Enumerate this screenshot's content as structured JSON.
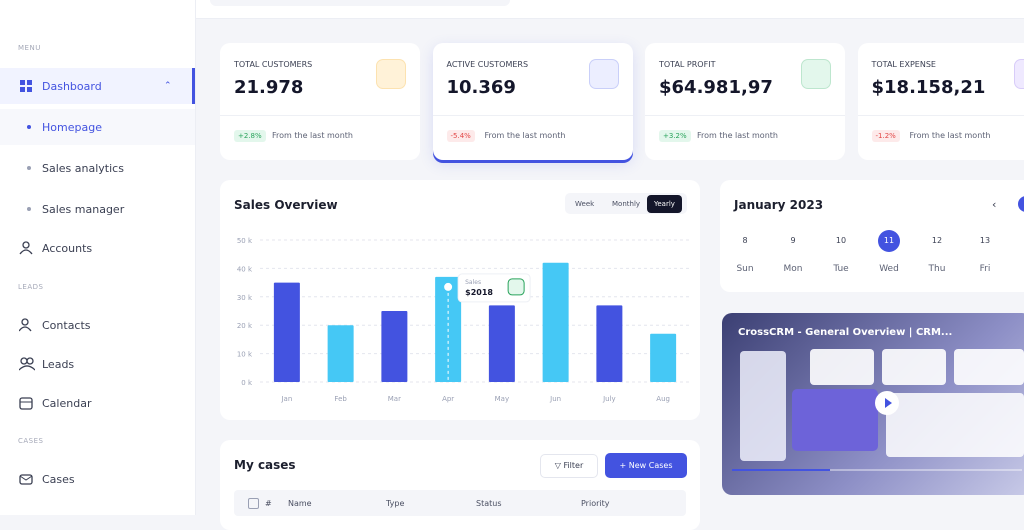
{
  "sidebar": {
    "sections": [
      {
        "label": "MENU",
        "items": [
          "Dashboard",
          "Homepage",
          "Sales analytics",
          "Sales manager",
          "Accounts"
        ]
      },
      {
        "label": "LEADS",
        "items": [
          "Contacts",
          "Leads",
          "Calendar"
        ]
      },
      {
        "label": "CASES",
        "items": [
          "Cases"
        ]
      }
    ]
  },
  "stats": [
    {
      "label": "TOTAL CUSTOMERS",
      "value": "21.978",
      "change": "+2.8%",
      "note": "From the last month"
    },
    {
      "label": "ACTIVE CUSTOMERS",
      "value": "10.369",
      "change": "-5.4%",
      "note": "From the last month"
    },
    {
      "label": "TOTAL PROFIT",
      "value": "$64.981,97",
      "change": "+3.2%",
      "note": "From the last month"
    },
    {
      "label": "TOTAL EXPENSE",
      "value": "$18.158,21",
      "change": "-1.2%",
      "note": "From the last month"
    }
  ],
  "sales_overview": {
    "title": "Sales Overview",
    "tabs": [
      "Week",
      "Monthly",
      "Yearly"
    ],
    "tooltip": {
      "label": "Sales",
      "value": "$2018"
    },
    "chart_data": {
      "type": "bar",
      "categories": [
        "Jan",
        "Feb",
        "Mar",
        "Apr",
        "May",
        "Jun",
        "July",
        "Aug"
      ],
      "values": [
        35,
        20,
        25,
        37,
        27,
        42,
        27,
        17
      ],
      "colors": [
        "#4353e0",
        "#45c8f5",
        "#4353e0",
        "#45c8f5",
        "#4353e0",
        "#45c8f5",
        "#4353e0",
        "#45c8f5"
      ],
      "ylim": [
        0,
        50
      ],
      "yticks": [
        {
          "value": 0,
          "label": "0 k"
        },
        {
          "value": 10,
          "label": "10 k"
        },
        {
          "value": 20,
          "label": "20 k"
        },
        {
          "value": 30,
          "label": "30 k"
        },
        {
          "value": 40,
          "label": "40 k"
        },
        {
          "value": 50,
          "label": "50 k"
        }
      ],
      "grid": true
    }
  },
  "calendar": {
    "title": "January 2023",
    "days": [
      {
        "date": 8,
        "day": "Sun"
      },
      {
        "date": 9,
        "day": "Mon"
      },
      {
        "date": 10,
        "day": "Tue"
      },
      {
        "date": 11,
        "day": "Wed"
      },
      {
        "date": 12,
        "day": "Thu"
      },
      {
        "date": 13,
        "day": "Fri"
      }
    ]
  },
  "video": {
    "title": "CrossCRM - General Overview | CRM..."
  },
  "cases": {
    "title": "My cases",
    "filter": "Filter",
    "new": "New Cases",
    "columns": [
      "#",
      "Name",
      "Type",
      "Status",
      "Priority"
    ]
  }
}
